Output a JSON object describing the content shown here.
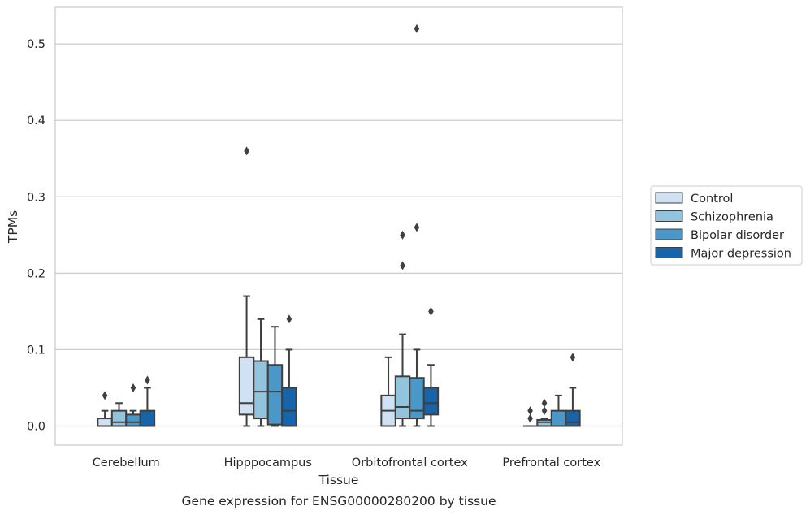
{
  "chart_data": {
    "type": "box",
    "xlabel": "Tissue",
    "ylabel": "TPMs",
    "caption": "Gene expression for ENSG00000280200 by tissue",
    "ylim": [
      -0.025,
      0.548
    ],
    "yticks": [
      0.0,
      0.1,
      0.2,
      0.3,
      0.4,
      0.5
    ],
    "ytick_labels": [
      "0.0",
      "0.1",
      "0.2",
      "0.3",
      "0.4",
      "0.5"
    ],
    "grid": "horizontal",
    "legend_position": "right",
    "categories": [
      "Cerebellum",
      "Hipppocampus",
      "Orbitofrontal cortex",
      "Prefrontal cortex"
    ],
    "series": [
      {
        "name": "Control",
        "color": "#cfe1f2",
        "boxes": [
          {
            "whislo": 0.0,
            "q1": 0.0,
            "med": 0.0,
            "q3": 0.01,
            "whishi": 0.02,
            "fliers": [
              0.04
            ]
          },
          {
            "whislo": 0.0,
            "q1": 0.015,
            "med": 0.03,
            "q3": 0.09,
            "whishi": 0.17,
            "fliers": [
              0.36
            ]
          },
          {
            "whislo": 0.0,
            "q1": 0.0,
            "med": 0.02,
            "q3": 0.04,
            "whishi": 0.09,
            "fliers": []
          },
          {
            "whislo": 0.0,
            "q1": 0.0,
            "med": 0.0,
            "q3": 0.0,
            "whishi": 0.0,
            "fliers": [
              0.01,
              0.02
            ]
          }
        ]
      },
      {
        "name": "Schizophrenia",
        "color": "#93c4de",
        "boxes": [
          {
            "whislo": 0.0,
            "q1": 0.0,
            "med": 0.005,
            "q3": 0.02,
            "whishi": 0.03,
            "fliers": []
          },
          {
            "whislo": 0.0,
            "q1": 0.01,
            "med": 0.045,
            "q3": 0.085,
            "whishi": 0.14,
            "fliers": []
          },
          {
            "whislo": 0.0,
            "q1": 0.01,
            "med": 0.025,
            "q3": 0.065,
            "whishi": 0.12,
            "fliers": [
              0.21,
              0.25
            ]
          },
          {
            "whislo": 0.0,
            "q1": 0.0,
            "med": 0.005,
            "q3": 0.008,
            "whishi": 0.01,
            "fliers": [
              0.02,
              0.03
            ]
          }
        ]
      },
      {
        "name": "Bipolar disorder",
        "color": "#4a98c9",
        "boxes": [
          {
            "whislo": 0.0,
            "q1": 0.0,
            "med": 0.005,
            "q3": 0.015,
            "whishi": 0.02,
            "fliers": [
              0.05
            ]
          },
          {
            "whislo": 0.0,
            "q1": 0.002,
            "med": 0.045,
            "q3": 0.08,
            "whishi": 0.13,
            "fliers": []
          },
          {
            "whislo": 0.0,
            "q1": 0.01,
            "med": 0.02,
            "q3": 0.063,
            "whishi": 0.1,
            "fliers": [
              0.26,
              0.52
            ]
          },
          {
            "whislo": 0.0,
            "q1": 0.0,
            "med": 0.0,
            "q3": 0.02,
            "whishi": 0.04,
            "fliers": []
          }
        ]
      },
      {
        "name": "Major depression",
        "color": "#1764ab",
        "boxes": [
          {
            "whislo": 0.0,
            "q1": 0.0,
            "med": 0.0,
            "q3": 0.02,
            "whishi": 0.05,
            "fliers": [
              0.06
            ]
          },
          {
            "whislo": 0.0,
            "q1": 0.0,
            "med": 0.02,
            "q3": 0.05,
            "whishi": 0.1,
            "fliers": [
              0.14
            ]
          },
          {
            "whislo": 0.0,
            "q1": 0.015,
            "med": 0.03,
            "q3": 0.05,
            "whishi": 0.08,
            "fliers": [
              0.15
            ]
          },
          {
            "whislo": 0.0,
            "q1": 0.0,
            "med": 0.005,
            "q3": 0.02,
            "whishi": 0.05,
            "fliers": [
              0.09
            ]
          }
        ]
      }
    ]
  }
}
